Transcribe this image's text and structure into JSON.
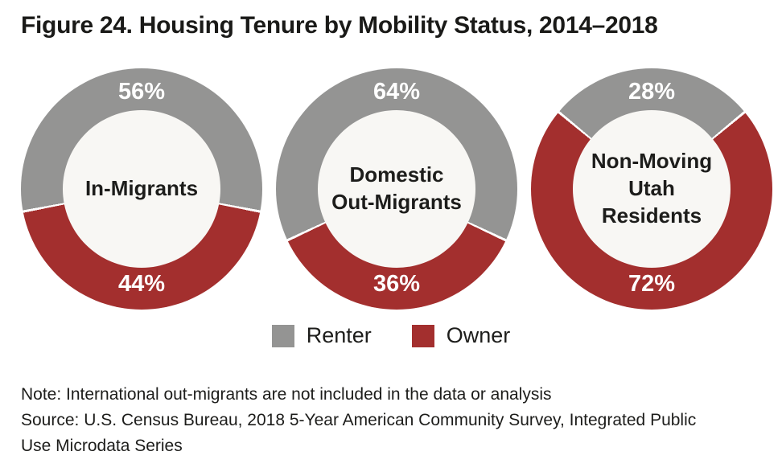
{
  "title": "Figure 24. Housing Tenure by Mobility Status, 2014–2018",
  "legend": {
    "items": [
      {
        "key": "renter",
        "label": "Renter"
      },
      {
        "key": "owner",
        "label": "Owner"
      }
    ]
  },
  "notes": {
    "note": "Note: International out-migrants are not included in the data or analysis",
    "source": "Source: U.S. Census Bureau, 2018 5-Year American Community Survey, Integrated Public Use Microdata Series"
  },
  "chart_data": {
    "type": "pie",
    "subtype": "donut-multiples",
    "title": "Figure 24. Housing Tenure by Mobility Status, 2014–2018",
    "series_names": [
      "Renter",
      "Owner"
    ],
    "legend_position": "bottom-center",
    "colors": {
      "renter": "#949493",
      "owner": "#A32F2E",
      "hole": "#F8F7F4",
      "separator": "#FFFFFF"
    },
    "layout": {
      "renter_arc_centered_at": "top",
      "hole_ratio": 0.65
    },
    "charts": [
      {
        "center_label": "In-Migrants",
        "values": {
          "Renter": 56,
          "Owner": 44
        },
        "display": {
          "Renter": "56%",
          "Owner": "44%"
        }
      },
      {
        "center_label": "Domestic\nOut-Migrants",
        "values": {
          "Renter": 64,
          "Owner": 36
        },
        "display": {
          "Renter": "64%",
          "Owner": "36%"
        }
      },
      {
        "center_label": "Non-Moving\nUtah\nResidents",
        "values": {
          "Renter": 28,
          "Owner": 72
        },
        "display": {
          "Renter": "28%",
          "Owner": "72%"
        }
      }
    ]
  }
}
